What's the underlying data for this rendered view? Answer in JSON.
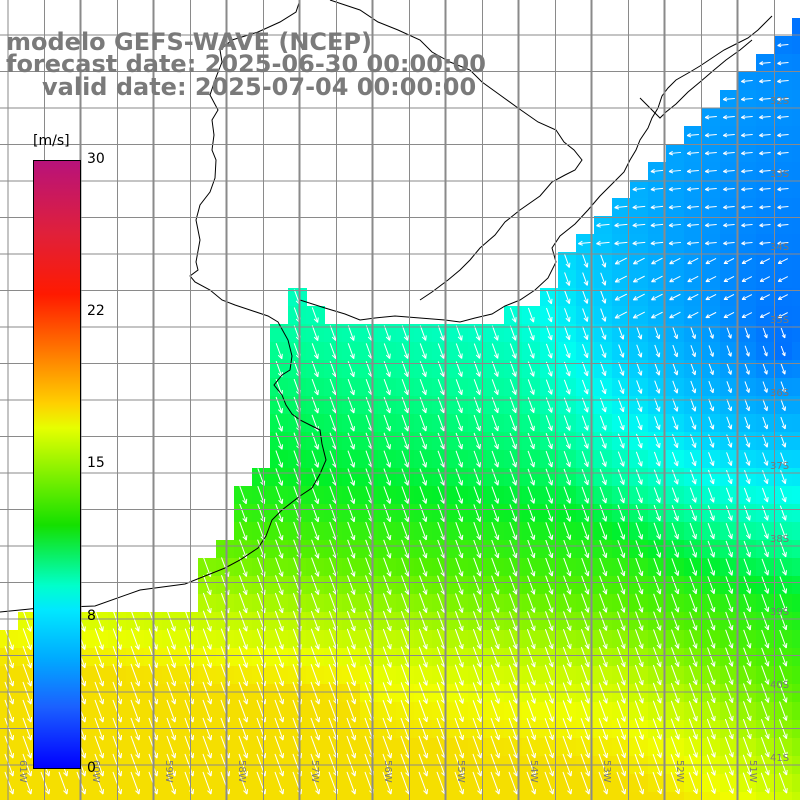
{
  "title": {
    "line1": "modelo GEFS-WAVE (NCEP)",
    "line2": "forecast date: 2025-06-30 00:00:00",
    "line3": "valid date: 2025-07-04 00:00:00"
  },
  "colorbar": {
    "unit": "[m/s]",
    "ticks": [
      "30",
      "22",
      "15",
      "8",
      "0"
    ],
    "tick_values": [
      30,
      22,
      15,
      8,
      0
    ],
    "colors": [
      "#0000ff",
      "#00aaff",
      "#00ffee",
      "#00ff40",
      "#ffff00",
      "#ff8000",
      "#ff0000",
      "#b8127a"
    ]
  },
  "map": {
    "lon_labels": [
      "61W",
      "60W",
      "59W",
      "58W",
      "57W",
      "56W",
      "55W",
      "54W",
      "53W",
      "52W",
      "51W"
    ],
    "lat_labels": [
      "32S",
      "33S",
      "34S",
      "35S",
      "36S",
      "37S",
      "38S",
      "39S",
      "40S",
      "41S"
    ],
    "grid_color": "#888888",
    "land_color": "#ffffff",
    "arrow_color": "#ffffff"
  }
}
